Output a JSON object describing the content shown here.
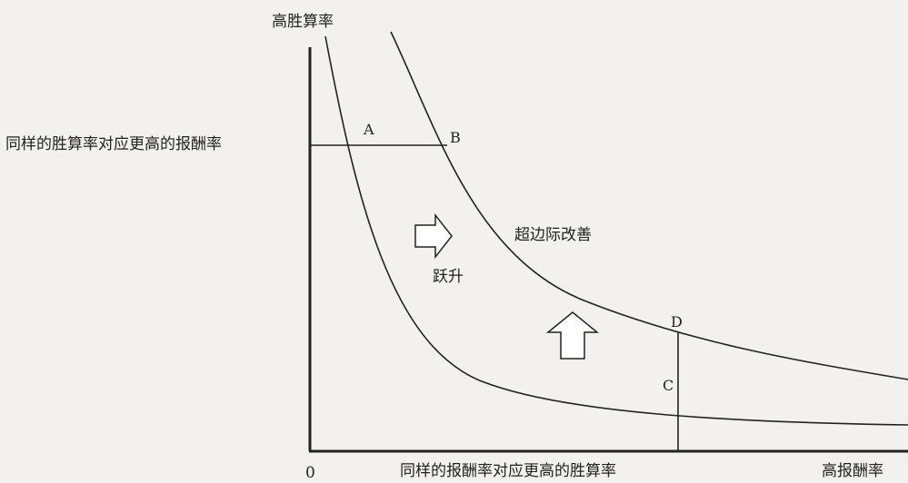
{
  "axes": {
    "y_label": "高胜算率",
    "x_label": "高报酬率",
    "origin_label": "0",
    "y_annotation": "同样的胜算率对应更高的报酬率",
    "x_annotation": "同样的报酬率对应更高的胜算率"
  },
  "points": {
    "a": "A",
    "b": "B",
    "c": "C",
    "d": "D"
  },
  "annotations": {
    "leap": "跃升",
    "marginal_improvement": "超边际改善"
  },
  "colors": {
    "line": "#222222",
    "background": "#f2f1ef",
    "arrow_fill": "#ffffff"
  }
}
